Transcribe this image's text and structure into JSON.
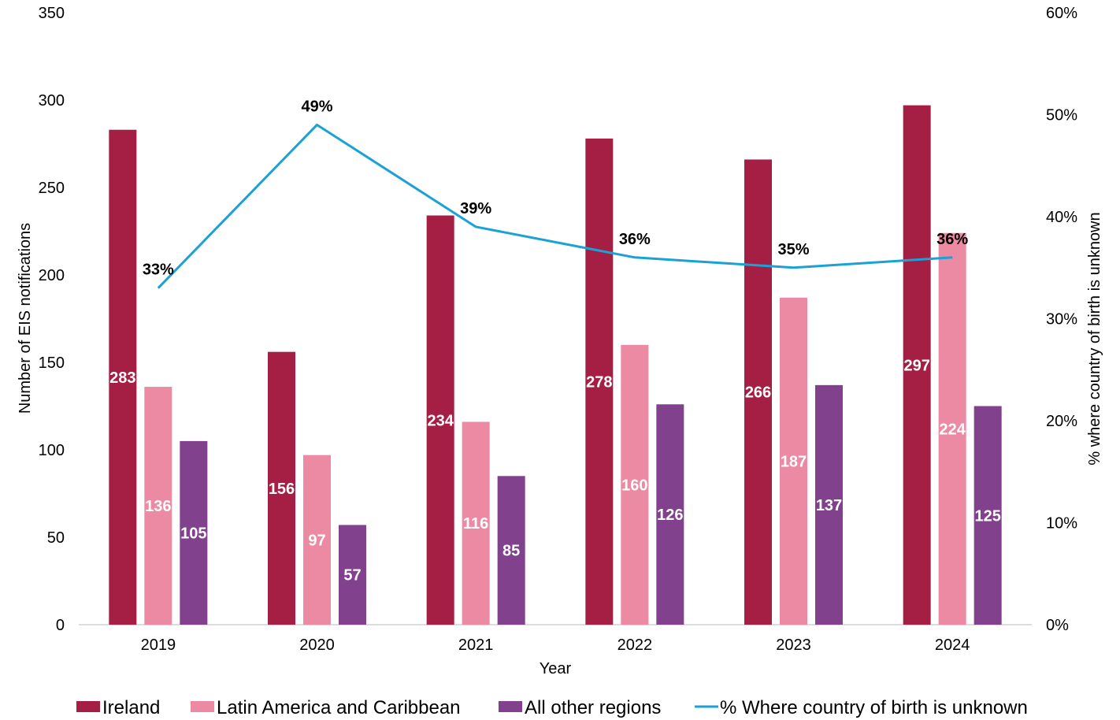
{
  "chart_data": {
    "type": "bar",
    "categories": [
      "2019",
      "2020",
      "2021",
      "2022",
      "2023",
      "2024"
    ],
    "xlabel": "Year",
    "ylabel": "Number of EIS notifications",
    "y2label": "% where country of birth is unknown",
    "ylim": [
      0,
      350
    ],
    "yticks": [
      0,
      50,
      100,
      150,
      200,
      250,
      300,
      350
    ],
    "y2lim": [
      0,
      60
    ],
    "y2ticks": [
      "0%",
      "10%",
      "20%",
      "30%",
      "40%",
      "50%",
      "60%"
    ],
    "series": [
      {
        "name": "Ireland",
        "kind": "bar",
        "color": "#A51F45",
        "values": [
          283,
          156,
          234,
          278,
          266,
          297
        ]
      },
      {
        "name": "Latin America and Caribbean",
        "kind": "bar",
        "color": "#EB8AA2",
        "values": [
          136,
          97,
          116,
          160,
          187,
          224
        ]
      },
      {
        "name": "All other regions",
        "kind": "bar",
        "color": "#81418D",
        "values": [
          105,
          57,
          85,
          126,
          137,
          125
        ]
      },
      {
        "name": "% Where country of birth is unknown",
        "kind": "line",
        "color": "#1AA1D6",
        "axis": "right",
        "values": [
          33,
          49,
          39,
          36,
          35,
          36
        ],
        "labels": [
          "33%",
          "49%",
          "39%",
          "36%",
          "35%",
          "36%"
        ]
      }
    ],
    "legend": "bottom",
    "grid": false
  }
}
